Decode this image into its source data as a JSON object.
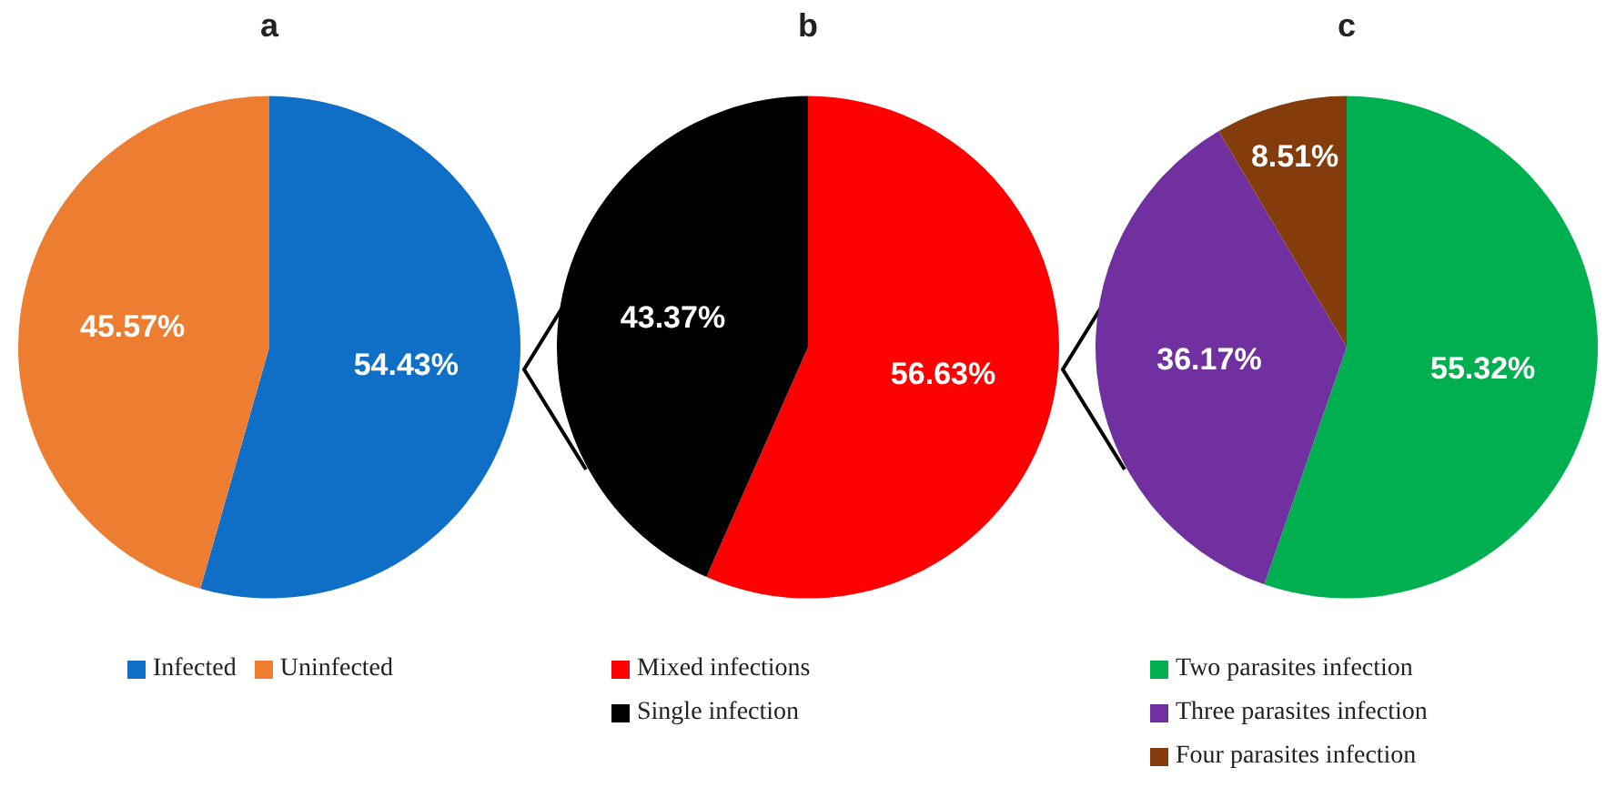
{
  "chart_data": [
    {
      "type": "pie",
      "title": "a",
      "categories": [
        "Infected",
        "Uninfected"
      ],
      "values": [
        54.43,
        45.57
      ],
      "colors": [
        "#0f6fc6",
        "#ed7d31"
      ],
      "value_labels": [
        "54.43%",
        "45.57%"
      ],
      "legend": "bottom"
    },
    {
      "type": "pie",
      "title": "b",
      "categories": [
        "Mixed infections",
        "Single infection"
      ],
      "values": [
        56.63,
        43.37
      ],
      "colors": [
        "#ff0000",
        "#000000"
      ],
      "value_labels": [
        "56.63%",
        "43.37%"
      ],
      "legend": "bottom left"
    },
    {
      "type": "pie",
      "title": "c",
      "categories": [
        "Two parasites infection",
        "Three parasites infection",
        "Four parasites infection"
      ],
      "values": [
        55.32,
        36.17,
        8.51
      ],
      "colors": [
        "#00b050",
        "#7030a0",
        "#843c0c"
      ],
      "value_labels": [
        "55.32%",
        "36.17%",
        "8.51%"
      ],
      "legend": "bottom left"
    }
  ]
}
